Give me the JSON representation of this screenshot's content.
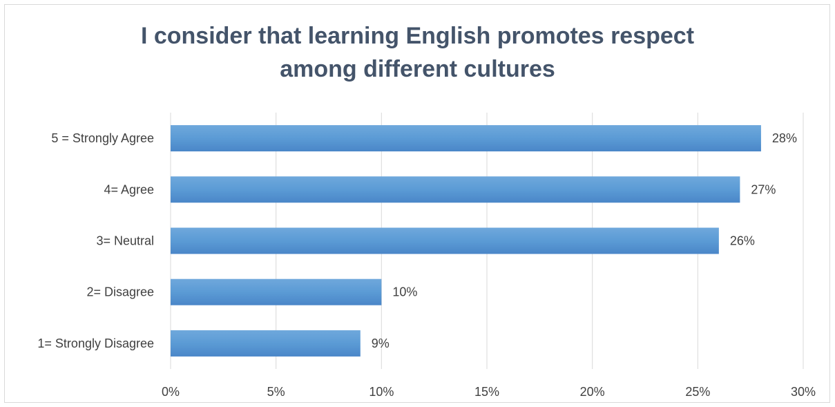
{
  "chart_data": {
    "type": "bar",
    "orientation": "horizontal",
    "title_lines": [
      "I consider that learning English promotes respect",
      "among different cultures"
    ],
    "categories": [
      "5 = Strongly Agree",
      "4= Agree",
      "3= Neutral",
      "2= Disagree",
      "1= Strongly Disagree"
    ],
    "values": [
      28,
      27,
      26,
      10,
      9
    ],
    "data_labels": [
      "28%",
      "27%",
      "26%",
      "10%",
      "9%"
    ],
    "xlim": [
      0,
      30
    ],
    "x_ticks": [
      0,
      5,
      10,
      15,
      20,
      25,
      30
    ],
    "x_tick_labels": [
      "0%",
      "5%",
      "10%",
      "15%",
      "20%",
      "25%",
      "30%"
    ],
    "grid": "vertical",
    "legend": "none",
    "bar_color": "#5b9bd5",
    "bar_color_light": "#6fa8dc",
    "bar_color_dark": "#4a86c8"
  }
}
